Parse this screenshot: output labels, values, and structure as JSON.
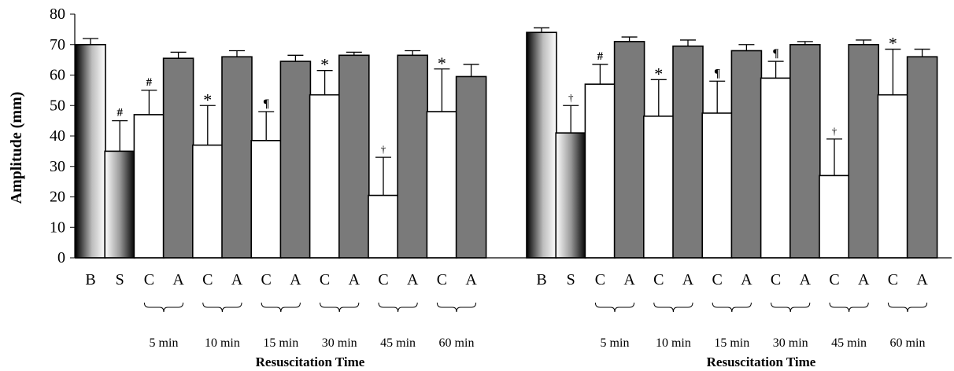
{
  "chart_data": {
    "type": "bar",
    "ylabel": "Amplitude (mm)",
    "xlabel": "Resuscitation Time",
    "ylim": [
      0,
      80
    ],
    "yticks": [
      0,
      10,
      20,
      30,
      40,
      50,
      60,
      70,
      80
    ],
    "colors": {
      "B": "gradient-dark-to-light",
      "S": "gradient-light-to-dark",
      "C": "#ffffff",
      "A": "#7a7a7a",
      "stroke": "#000000"
    },
    "panels": [
      {
        "bars": [
          {
            "label": "B",
            "kind": "B",
            "value": 70,
            "error": 2,
            "sig": ""
          },
          {
            "label": "S",
            "kind": "S",
            "value": 35,
            "error": 10,
            "sig": "#"
          },
          {
            "label": "C",
            "kind": "C",
            "value": 47,
            "error": 8,
            "sig": "#"
          },
          {
            "label": "A",
            "kind": "A",
            "value": 65.5,
            "error": 2,
            "sig": ""
          },
          {
            "label": "C",
            "kind": "C",
            "value": 37,
            "error": 13,
            "sig": "*"
          },
          {
            "label": "A",
            "kind": "A",
            "value": 66,
            "error": 2,
            "sig": ""
          },
          {
            "label": "C",
            "kind": "C",
            "value": 38.5,
            "error": 9.5,
            "sig": "¶"
          },
          {
            "label": "A",
            "kind": "A",
            "value": 64.5,
            "error": 2,
            "sig": ""
          },
          {
            "label": "C",
            "kind": "C",
            "value": 53.5,
            "error": 8,
            "sig": "*"
          },
          {
            "label": "A",
            "kind": "A",
            "value": 66.5,
            "error": 1,
            "sig": ""
          },
          {
            "label": "C",
            "kind": "C",
            "value": 20.5,
            "error": 12.5,
            "sig": "†"
          },
          {
            "label": "A",
            "kind": "A",
            "value": 66.5,
            "error": 1.5,
            "sig": ""
          },
          {
            "label": "C",
            "kind": "C",
            "value": 48,
            "error": 14,
            "sig": "*"
          },
          {
            "label": "A",
            "kind": "A",
            "value": 59.5,
            "error": 4,
            "sig": ""
          }
        ],
        "time_groups": [
          "5 min",
          "10 min",
          "15 min",
          "30 min",
          "45 min",
          "60 min"
        ],
        "xlabel": "Resuscitation Time"
      },
      {
        "bars": [
          {
            "label": "B",
            "kind": "B",
            "value": 74,
            "error": 1.5,
            "sig": ""
          },
          {
            "label": "S",
            "kind": "S",
            "value": 41,
            "error": 9,
            "sig": "†"
          },
          {
            "label": "C",
            "kind": "C",
            "value": 57,
            "error": 6.5,
            "sig": "#"
          },
          {
            "label": "A",
            "kind": "A",
            "value": 71,
            "error": 1.5,
            "sig": ""
          },
          {
            "label": "C",
            "kind": "C",
            "value": 46.5,
            "error": 12,
            "sig": "*"
          },
          {
            "label": "A",
            "kind": "A",
            "value": 69.5,
            "error": 2,
            "sig": ""
          },
          {
            "label": "C",
            "kind": "C",
            "value": 47.5,
            "error": 10.5,
            "sig": "¶"
          },
          {
            "label": "A",
            "kind": "A",
            "value": 68,
            "error": 2,
            "sig": ""
          },
          {
            "label": "C",
            "kind": "C",
            "value": 59,
            "error": 5.5,
            "sig": "¶"
          },
          {
            "label": "A",
            "kind": "A",
            "value": 70,
            "error": 1,
            "sig": ""
          },
          {
            "label": "C",
            "kind": "C",
            "value": 27,
            "error": 12,
            "sig": "†"
          },
          {
            "label": "A",
            "kind": "A",
            "value": 70,
            "error": 1.5,
            "sig": ""
          },
          {
            "label": "C",
            "kind": "C",
            "value": 53.5,
            "error": 15,
            "sig": "*"
          },
          {
            "label": "A",
            "kind": "A",
            "value": 66,
            "error": 2.5,
            "sig": ""
          }
        ],
        "time_groups": [
          "5 min",
          "10 min",
          "15 min",
          "30 min",
          "45 min",
          "60 min"
        ],
        "xlabel": "Resuscitation Time"
      }
    ]
  }
}
